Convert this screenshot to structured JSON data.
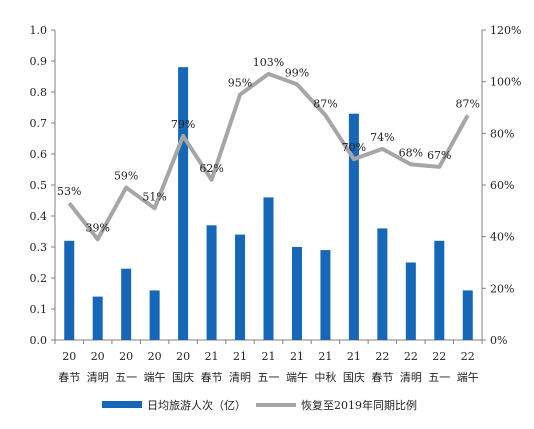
{
  "chart_data": {
    "type": "bar",
    "categories_year": [
      "20",
      "20",
      "20",
      "20",
      "20",
      "21",
      "21",
      "21",
      "21",
      "21",
      "21",
      "22",
      "22",
      "22",
      "22"
    ],
    "categories_holiday": [
      "春节",
      "清明",
      "五一",
      "端午",
      "国庆",
      "春节",
      "清明",
      "五一",
      "端午",
      "中秋",
      "国庆",
      "春节",
      "清明",
      "五一",
      "端午"
    ],
    "series": [
      {
        "name": "日均旅游人次（亿）",
        "type": "bar",
        "color": "#1667b8",
        "values": [
          0.32,
          0.14,
          0.23,
          0.16,
          0.88,
          0.37,
          0.34,
          0.46,
          0.3,
          0.29,
          0.73,
          0.36,
          0.25,
          0.32,
          0.16
        ]
      },
      {
        "name": "恢复至2019年同期比例",
        "type": "line",
        "axis": "right",
        "color": "#a6a6a6",
        "values": [
          53,
          39,
          59,
          51,
          79,
          62,
          95,
          103,
          99,
          87,
          70,
          74,
          68,
          67,
          87
        ],
        "labels": [
          "53%",
          "39%",
          "59%",
          "51%",
          "79%",
          "62%",
          "95%",
          "103%",
          "99%",
          "87%",
          "70%",
          "74%",
          "68%",
          "67%",
          "87%"
        ]
      }
    ],
    "left_axis": {
      "ylim": [
        0,
        1.0
      ],
      "ticks": [
        "0.0",
        "0.1",
        "0.2",
        "0.3",
        "0.4",
        "0.5",
        "0.6",
        "0.7",
        "0.8",
        "0.9",
        "1.0"
      ]
    },
    "right_axis": {
      "ylim": [
        0,
        120
      ],
      "ticks": [
        "0%",
        "20%",
        "40%",
        "60%",
        "80%",
        "100%",
        "120%"
      ]
    },
    "grid": false,
    "legend_position": "bottom"
  }
}
